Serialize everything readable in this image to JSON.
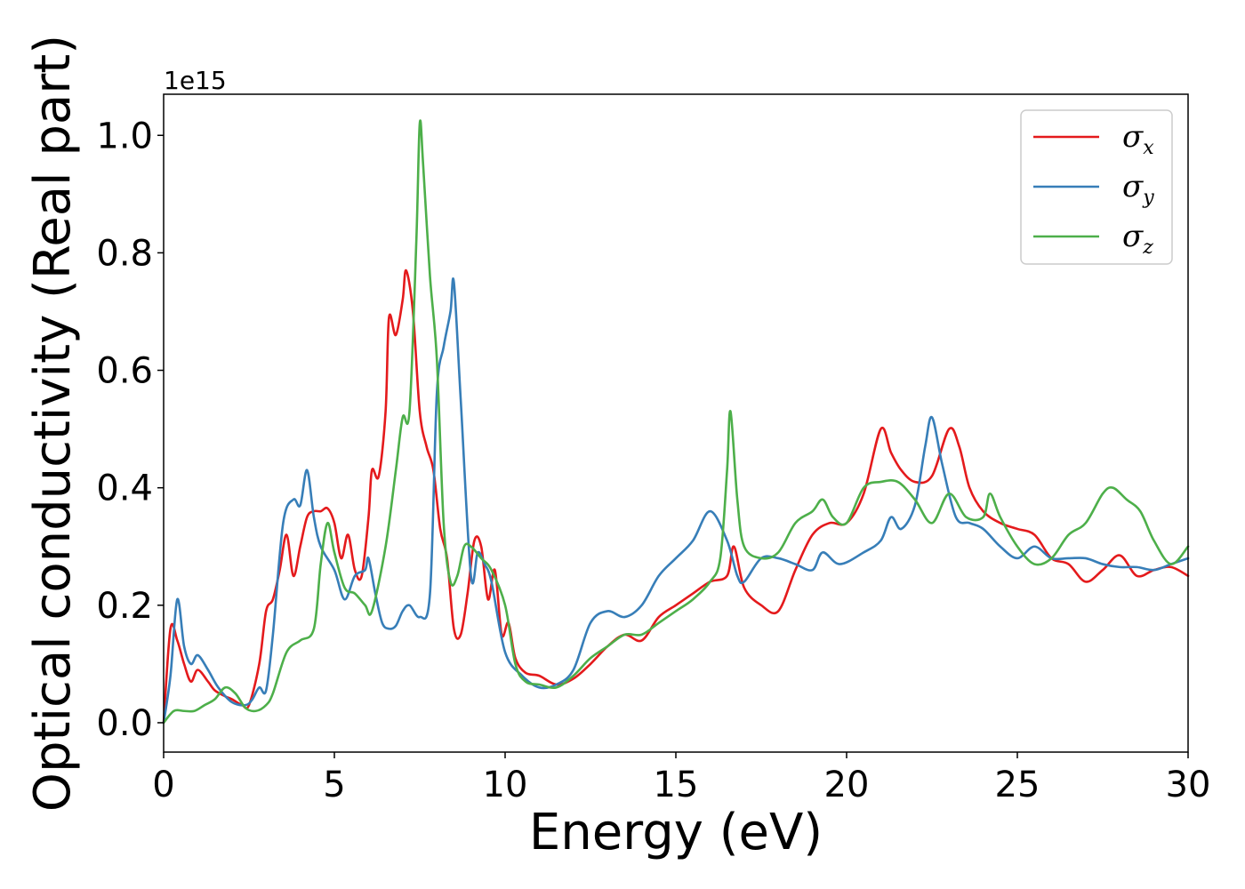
{
  "chart_data": {
    "type": "line",
    "title": "",
    "xlabel": "Energy (eV)",
    "ylabel": "Optical conductivity (Real part)",
    "y_offset_label": "1e15",
    "xlim": [
      0,
      30
    ],
    "ylim": [
      -0.05,
      1.07
    ],
    "x_ticks": [
      0,
      5,
      10,
      15,
      20,
      25,
      30
    ],
    "x_tick_labels": [
      "0",
      "5",
      "10",
      "15",
      "20",
      "25",
      "30"
    ],
    "y_ticks": [
      0.0,
      0.2,
      0.4,
      0.6,
      0.8,
      1.0
    ],
    "y_tick_labels": [
      "0.0",
      "0.2",
      "0.4",
      "0.6",
      "0.8",
      "1.0"
    ],
    "grid": false,
    "legend_position": "top-right",
    "series": [
      {
        "name": "σx",
        "legend_symbol": "σ",
        "legend_subscript": "x",
        "color": "#e41a1c",
        "points": [
          [
            0,
            0
          ],
          [
            0.2,
            0.16
          ],
          [
            0.4,
            0.14
          ],
          [
            0.6,
            0.1
          ],
          [
            0.8,
            0.07
          ],
          [
            1.0,
            0.09
          ],
          [
            1.3,
            0.07
          ],
          [
            1.5,
            0.055
          ],
          [
            1.8,
            0.045
          ],
          [
            2.0,
            0.04
          ],
          [
            2.3,
            0.03
          ],
          [
            2.5,
            0.03
          ],
          [
            2.8,
            0.1
          ],
          [
            3.0,
            0.19
          ],
          [
            3.2,
            0.21
          ],
          [
            3.4,
            0.26
          ],
          [
            3.6,
            0.32
          ],
          [
            3.8,
            0.25
          ],
          [
            4.0,
            0.3
          ],
          [
            4.2,
            0.35
          ],
          [
            4.4,
            0.36
          ],
          [
            4.6,
            0.36
          ],
          [
            4.8,
            0.365
          ],
          [
            5.0,
            0.34
          ],
          [
            5.2,
            0.28
          ],
          [
            5.4,
            0.32
          ],
          [
            5.6,
            0.26
          ],
          [
            5.8,
            0.25
          ],
          [
            6.0,
            0.35
          ],
          [
            6.1,
            0.43
          ],
          [
            6.3,
            0.42
          ],
          [
            6.5,
            0.53
          ],
          [
            6.6,
            0.69
          ],
          [
            6.8,
            0.66
          ],
          [
            7.0,
            0.72
          ],
          [
            7.1,
            0.77
          ],
          [
            7.3,
            0.7
          ],
          [
            7.5,
            0.53
          ],
          [
            7.7,
            0.47
          ],
          [
            7.9,
            0.43
          ],
          [
            8.1,
            0.33
          ],
          [
            8.3,
            0.28
          ],
          [
            8.5,
            0.16
          ],
          [
            8.7,
            0.15
          ],
          [
            8.9,
            0.22
          ],
          [
            9.1,
            0.31
          ],
          [
            9.3,
            0.3
          ],
          [
            9.5,
            0.21
          ],
          [
            9.7,
            0.26
          ],
          [
            9.9,
            0.15
          ],
          [
            10.1,
            0.17
          ],
          [
            10.3,
            0.11
          ],
          [
            10.6,
            0.085
          ],
          [
            11.0,
            0.08
          ],
          [
            11.5,
            0.065
          ],
          [
            12.0,
            0.075
          ],
          [
            12.5,
            0.1
          ],
          [
            13.0,
            0.13
          ],
          [
            13.5,
            0.15
          ],
          [
            14.0,
            0.14
          ],
          [
            14.5,
            0.18
          ],
          [
            15.0,
            0.2
          ],
          [
            15.5,
            0.22
          ],
          [
            16.0,
            0.24
          ],
          [
            16.5,
            0.25
          ],
          [
            16.7,
            0.3
          ],
          [
            17.0,
            0.23
          ],
          [
            17.5,
            0.2
          ],
          [
            18.0,
            0.19
          ],
          [
            18.5,
            0.26
          ],
          [
            19.0,
            0.32
          ],
          [
            19.5,
            0.34
          ],
          [
            20.0,
            0.34
          ],
          [
            20.5,
            0.39
          ],
          [
            21.0,
            0.5
          ],
          [
            21.3,
            0.46
          ],
          [
            21.6,
            0.43
          ],
          [
            22.0,
            0.41
          ],
          [
            22.5,
            0.42
          ],
          [
            23.0,
            0.5
          ],
          [
            23.3,
            0.47
          ],
          [
            23.6,
            0.4
          ],
          [
            24.0,
            0.36
          ],
          [
            24.5,
            0.34
          ],
          [
            25.0,
            0.33
          ],
          [
            25.5,
            0.32
          ],
          [
            26.0,
            0.28
          ],
          [
            26.5,
            0.27
          ],
          [
            27.0,
            0.24
          ],
          [
            27.5,
            0.26
          ],
          [
            28.0,
            0.285
          ],
          [
            28.5,
            0.25
          ],
          [
            29.0,
            0.26
          ],
          [
            29.5,
            0.265
          ],
          [
            30.0,
            0.25
          ]
        ]
      },
      {
        "name": "σy",
        "legend_symbol": "σ",
        "legend_subscript": "y",
        "color": "#377eb8",
        "points": [
          [
            0,
            0
          ],
          [
            0.2,
            0.08
          ],
          [
            0.4,
            0.21
          ],
          [
            0.6,
            0.13
          ],
          [
            0.8,
            0.1
          ],
          [
            1.0,
            0.115
          ],
          [
            1.3,
            0.09
          ],
          [
            1.6,
            0.06
          ],
          [
            2.0,
            0.035
          ],
          [
            2.4,
            0.03
          ],
          [
            2.6,
            0.04
          ],
          [
            2.8,
            0.06
          ],
          [
            3.0,
            0.055
          ],
          [
            3.2,
            0.15
          ],
          [
            3.5,
            0.34
          ],
          [
            3.8,
            0.38
          ],
          [
            4.0,
            0.37
          ],
          [
            4.2,
            0.43
          ],
          [
            4.4,
            0.35
          ],
          [
            4.6,
            0.3
          ],
          [
            5.0,
            0.26
          ],
          [
            5.3,
            0.21
          ],
          [
            5.6,
            0.25
          ],
          [
            5.9,
            0.26
          ],
          [
            6.0,
            0.28
          ],
          [
            6.2,
            0.22
          ],
          [
            6.4,
            0.17
          ],
          [
            6.6,
            0.16
          ],
          [
            6.8,
            0.165
          ],
          [
            7.0,
            0.19
          ],
          [
            7.2,
            0.2
          ],
          [
            7.5,
            0.18
          ],
          [
            7.8,
            0.22
          ],
          [
            8.0,
            0.56
          ],
          [
            8.2,
            0.64
          ],
          [
            8.4,
            0.7
          ],
          [
            8.5,
            0.75
          ],
          [
            8.7,
            0.55
          ],
          [
            9.0,
            0.25
          ],
          [
            9.2,
            0.29
          ],
          [
            9.4,
            0.27
          ],
          [
            9.6,
            0.24
          ],
          [
            10.0,
            0.12
          ],
          [
            10.5,
            0.08
          ],
          [
            11.0,
            0.06
          ],
          [
            11.5,
            0.065
          ],
          [
            12.0,
            0.09
          ],
          [
            12.5,
            0.17
          ],
          [
            13.0,
            0.19
          ],
          [
            13.5,
            0.18
          ],
          [
            14.0,
            0.2
          ],
          [
            14.5,
            0.25
          ],
          [
            15.0,
            0.28
          ],
          [
            15.5,
            0.31
          ],
          [
            16.0,
            0.36
          ],
          [
            16.5,
            0.31
          ],
          [
            16.8,
            0.25
          ],
          [
            17.0,
            0.24
          ],
          [
            17.5,
            0.28
          ],
          [
            18.0,
            0.28
          ],
          [
            18.5,
            0.27
          ],
          [
            19.0,
            0.26
          ],
          [
            19.3,
            0.29
          ],
          [
            19.8,
            0.27
          ],
          [
            20.5,
            0.29
          ],
          [
            21.0,
            0.31
          ],
          [
            21.3,
            0.35
          ],
          [
            21.6,
            0.33
          ],
          [
            22.0,
            0.37
          ],
          [
            22.3,
            0.47
          ],
          [
            22.5,
            0.52
          ],
          [
            22.8,
            0.44
          ],
          [
            23.2,
            0.35
          ],
          [
            23.6,
            0.34
          ],
          [
            24.0,
            0.33
          ],
          [
            24.5,
            0.3
          ],
          [
            25.0,
            0.28
          ],
          [
            25.5,
            0.3
          ],
          [
            26.0,
            0.28
          ],
          [
            26.5,
            0.28
          ],
          [
            27.0,
            0.28
          ],
          [
            27.5,
            0.27
          ],
          [
            28.0,
            0.265
          ],
          [
            28.5,
            0.265
          ],
          [
            29.0,
            0.26
          ],
          [
            29.5,
            0.27
          ],
          [
            30.0,
            0.28
          ]
        ]
      },
      {
        "name": "σz",
        "legend_symbol": "σ",
        "legend_subscript": "z",
        "color": "#4daf4a",
        "points": [
          [
            0,
            0
          ],
          [
            0.3,
            0.02
          ],
          [
            0.6,
            0.02
          ],
          [
            0.9,
            0.02
          ],
          [
            1.2,
            0.03
          ],
          [
            1.5,
            0.04
          ],
          [
            1.8,
            0.06
          ],
          [
            2.1,
            0.05
          ],
          [
            2.4,
            0.025
          ],
          [
            2.7,
            0.02
          ],
          [
            3.0,
            0.03
          ],
          [
            3.2,
            0.05
          ],
          [
            3.6,
            0.12
          ],
          [
            4.0,
            0.14
          ],
          [
            4.4,
            0.16
          ],
          [
            4.6,
            0.27
          ],
          [
            4.8,
            0.34
          ],
          [
            5.0,
            0.29
          ],
          [
            5.3,
            0.23
          ],
          [
            5.6,
            0.22
          ],
          [
            5.9,
            0.2
          ],
          [
            6.1,
            0.19
          ],
          [
            6.5,
            0.3
          ],
          [
            6.8,
            0.43
          ],
          [
            7.0,
            0.52
          ],
          [
            7.2,
            0.53
          ],
          [
            7.4,
            0.82
          ],
          [
            7.5,
            1.02
          ],
          [
            7.6,
            0.95
          ],
          [
            7.8,
            0.76
          ],
          [
            8.0,
            0.62
          ],
          [
            8.2,
            0.34
          ],
          [
            8.4,
            0.24
          ],
          [
            8.6,
            0.25
          ],
          [
            8.8,
            0.3
          ],
          [
            9.0,
            0.3
          ],
          [
            9.3,
            0.28
          ],
          [
            9.6,
            0.26
          ],
          [
            10.0,
            0.2
          ],
          [
            10.3,
            0.1
          ],
          [
            10.6,
            0.07
          ],
          [
            11.0,
            0.065
          ],
          [
            11.5,
            0.06
          ],
          [
            12.0,
            0.08
          ],
          [
            12.5,
            0.11
          ],
          [
            13.0,
            0.13
          ],
          [
            13.5,
            0.15
          ],
          [
            14.0,
            0.15
          ],
          [
            14.5,
            0.17
          ],
          [
            15.0,
            0.19
          ],
          [
            15.5,
            0.21
          ],
          [
            16.0,
            0.24
          ],
          [
            16.3,
            0.28
          ],
          [
            16.5,
            0.43
          ],
          [
            16.6,
            0.53
          ],
          [
            16.8,
            0.38
          ],
          [
            17.0,
            0.3
          ],
          [
            17.5,
            0.28
          ],
          [
            18.0,
            0.29
          ],
          [
            18.5,
            0.34
          ],
          [
            19.0,
            0.36
          ],
          [
            19.3,
            0.38
          ],
          [
            19.6,
            0.35
          ],
          [
            20.0,
            0.34
          ],
          [
            20.5,
            0.4
          ],
          [
            21.0,
            0.41
          ],
          [
            21.5,
            0.41
          ],
          [
            22.0,
            0.38
          ],
          [
            22.5,
            0.34
          ],
          [
            23.0,
            0.39
          ],
          [
            23.5,
            0.35
          ],
          [
            24.0,
            0.35
          ],
          [
            24.2,
            0.39
          ],
          [
            24.5,
            0.35
          ],
          [
            25.0,
            0.3
          ],
          [
            25.5,
            0.27
          ],
          [
            26.0,
            0.28
          ],
          [
            26.5,
            0.32
          ],
          [
            27.0,
            0.34
          ],
          [
            27.5,
            0.39
          ],
          [
            27.8,
            0.4
          ],
          [
            28.2,
            0.38
          ],
          [
            28.6,
            0.36
          ],
          [
            29.0,
            0.31
          ],
          [
            29.5,
            0.27
          ],
          [
            30.0,
            0.3
          ]
        ]
      }
    ]
  }
}
